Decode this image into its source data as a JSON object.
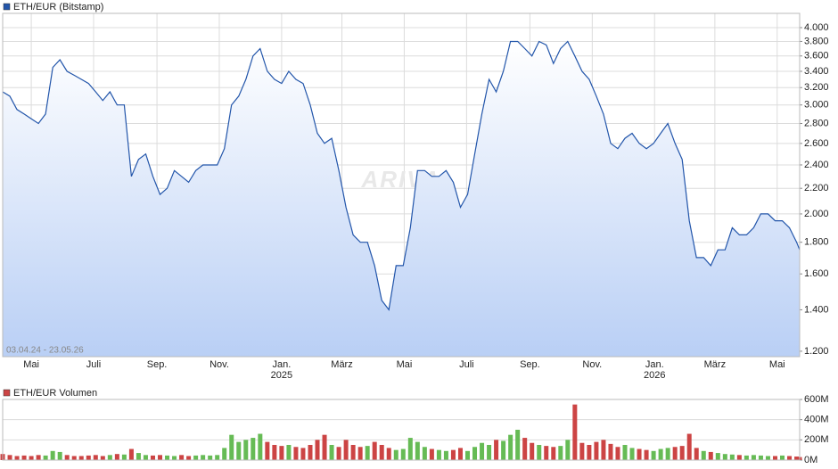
{
  "chart_data": [
    {
      "type": "line",
      "title": "ETH/EUR (Bitstamp)",
      "date_range": "03.04.24 - 23.05.26",
      "watermark": "ARIVA",
      "color": "#2255aa",
      "log_scale": true,
      "grid": true,
      "xlim": [
        "2024-04-03",
        "2026-05-23"
      ],
      "ylim": [
        1176,
        4218
      ],
      "yticks": [
        {
          "value": 1200,
          "label": "1.200"
        },
        {
          "value": 1400,
          "label": "1.400"
        },
        {
          "value": 1600,
          "label": "1.600"
        },
        {
          "value": 1800,
          "label": "1.800"
        },
        {
          "value": 2000,
          "label": "2.000"
        },
        {
          "value": 2200,
          "label": "2.200"
        },
        {
          "value": 2400,
          "label": "2.400"
        },
        {
          "value": 2600,
          "label": "2.600"
        },
        {
          "value": 2800,
          "label": "2.800"
        },
        {
          "value": 3000,
          "label": "3.000"
        },
        {
          "value": 3200,
          "label": "3.200"
        },
        {
          "value": 3400,
          "label": "3.400"
        },
        {
          "value": 3600,
          "label": "3.600"
        },
        {
          "value": 3800,
          "label": "3.800"
        },
        {
          "value": 4000,
          "label": "4.000"
        }
      ],
      "xticks": [
        {
          "value": "2024-05-01",
          "label": "Mai"
        },
        {
          "value": "2024-07-01",
          "label": "Juli"
        },
        {
          "value": "2024-09-01",
          "label": "Sep."
        },
        {
          "value": "2024-11-01",
          "label": "Nov."
        },
        {
          "value": "2025-01-01",
          "label": "Jan."
        },
        {
          "value": "2025-03-01",
          "label": "März"
        },
        {
          "value": "2025-05-01",
          "label": "Mai"
        },
        {
          "value": "2025-07-01",
          "label": "Juli"
        },
        {
          "value": "2025-09-01",
          "label": "Sep."
        },
        {
          "value": "2025-11-01",
          "label": "Nov."
        },
        {
          "value": "2026-01-01",
          "label": "Jan."
        },
        {
          "value": "2026-03-01",
          "label": "März"
        },
        {
          "value": "2026-05-01",
          "label": "Mai"
        }
      ],
      "year_labels": [
        {
          "value": "2025-01-01",
          "label": "2025"
        },
        {
          "value": "2026-01-01",
          "label": "2026"
        }
      ],
      "x": [
        "2024-04-03",
        "2024-04-10",
        "2024-04-17",
        "2024-04-24",
        "2024-05-01",
        "2024-05-08",
        "2024-05-15",
        "2024-05-22",
        "2024-05-29",
        "2024-06-05",
        "2024-06-12",
        "2024-06-19",
        "2024-06-26",
        "2024-07-03",
        "2024-07-10",
        "2024-07-17",
        "2024-07-24",
        "2024-07-31",
        "2024-08-07",
        "2024-08-14",
        "2024-08-21",
        "2024-08-28",
        "2024-09-04",
        "2024-09-11",
        "2024-09-18",
        "2024-09-25",
        "2024-10-02",
        "2024-10-09",
        "2024-10-16",
        "2024-10-23",
        "2024-10-30",
        "2024-11-06",
        "2024-11-13",
        "2024-11-20",
        "2024-11-27",
        "2024-12-04",
        "2024-12-11",
        "2024-12-18",
        "2024-12-25",
        "2025-01-01",
        "2025-01-08",
        "2025-01-15",
        "2025-01-22",
        "2025-01-29",
        "2025-02-05",
        "2025-02-12",
        "2025-02-19",
        "2025-02-26",
        "2025-03-05",
        "2025-03-12",
        "2025-03-19",
        "2025-03-26",
        "2025-04-02",
        "2025-04-09",
        "2025-04-16",
        "2025-04-23",
        "2025-04-30",
        "2025-05-07",
        "2025-05-14",
        "2025-05-21",
        "2025-05-28",
        "2025-06-04",
        "2025-06-11",
        "2025-06-18",
        "2025-06-25",
        "2025-07-02",
        "2025-07-09",
        "2025-07-16",
        "2025-07-23",
        "2025-07-30",
        "2025-08-06",
        "2025-08-13",
        "2025-08-20",
        "2025-08-27",
        "2025-09-03",
        "2025-09-10",
        "2025-09-17",
        "2025-09-24",
        "2025-10-01",
        "2025-10-08",
        "2025-10-15",
        "2025-10-22",
        "2025-10-29",
        "2025-11-05",
        "2025-11-12",
        "2025-11-19",
        "2025-11-26",
        "2025-12-03",
        "2025-12-10",
        "2025-12-17",
        "2025-12-24",
        "2025-12-31",
        "2026-01-07",
        "2026-01-14",
        "2026-01-21",
        "2026-01-28",
        "2026-02-04",
        "2026-02-11",
        "2026-02-18",
        "2026-02-25",
        "2026-03-04",
        "2026-03-11",
        "2026-03-18",
        "2026-03-25",
        "2026-04-01",
        "2026-04-08",
        "2026-04-15",
        "2026-04-22",
        "2026-04-29",
        "2026-05-06",
        "2026-05-13",
        "2026-05-20",
        "2026-05-23"
      ],
      "values": [
        3150,
        3100,
        2950,
        2900,
        2850,
        2800,
        2900,
        3450,
        3550,
        3400,
        3350,
        3300,
        3250,
        3150,
        3050,
        3150,
        3000,
        3000,
        2300,
        2450,
        2500,
        2300,
        2150,
        2200,
        2350,
        2300,
        2250,
        2350,
        2400,
        2400,
        2400,
        2550,
        3000,
        3100,
        3300,
        3600,
        3700,
        3400,
        3300,
        3250,
        3400,
        3300,
        3250,
        3000,
        2700,
        2600,
        2650,
        2350,
        2050,
        1850,
        1800,
        1800,
        1650,
        1450,
        1400,
        1650,
        1650,
        1900,
        2350,
        2350,
        2300,
        2300,
        2350,
        2250,
        2050,
        2150,
        2500,
        2900,
        3300,
        3150,
        3400,
        3800,
        3800,
        3700,
        3600,
        3800,
        3750,
        3500,
        3700,
        3800,
        3600,
        3400,
        3300,
        3100,
        2900,
        2600,
        2550,
        2650,
        2700,
        2600,
        2550,
        2600,
        2700,
        2800,
        2600,
        2450,
        1950,
        1700,
        1700,
        1650,
        1750,
        1750,
        1900,
        1850,
        1850,
        1900,
        2000,
        2000,
        1950,
        1950,
        1900,
        1800,
        1750
      ]
    },
    {
      "type": "bar",
      "title": "ETH/EUR Volumen",
      "color": "#cc4444",
      "up_color": "#66bb55",
      "down_color": "#cc4444",
      "grid": true,
      "xlim": [
        "2024-04-03",
        "2026-05-23"
      ],
      "ylim": [
        0,
        600000000
      ],
      "yticks": [
        {
          "value": 0,
          "label": "0M"
        },
        {
          "value": 200000000,
          "label": "200M"
        },
        {
          "value": 400000000,
          "label": "400M"
        },
        {
          "value": 600000000,
          "label": "600M"
        }
      ],
      "values": [
        60000000,
        50000000,
        40000000,
        45000000,
        40000000,
        50000000,
        45000000,
        90000000,
        80000000,
        50000000,
        40000000,
        40000000,
        45000000,
        50000000,
        40000000,
        50000000,
        60000000,
        55000000,
        110000000,
        70000000,
        50000000,
        45000000,
        50000000,
        45000000,
        40000000,
        50000000,
        40000000,
        45000000,
        50000000,
        45000000,
        50000000,
        120000000,
        250000000,
        180000000,
        200000000,
        220000000,
        260000000,
        180000000,
        150000000,
        140000000,
        150000000,
        130000000,
        120000000,
        150000000,
        200000000,
        250000000,
        150000000,
        130000000,
        200000000,
        150000000,
        130000000,
        140000000,
        180000000,
        150000000,
        120000000,
        100000000,
        110000000,
        220000000,
        180000000,
        130000000,
        110000000,
        100000000,
        90000000,
        100000000,
        120000000,
        90000000,
        130000000,
        170000000,
        150000000,
        200000000,
        190000000,
        250000000,
        300000000,
        220000000,
        170000000,
        150000000,
        140000000,
        130000000,
        140000000,
        200000000,
        550000000,
        170000000,
        150000000,
        180000000,
        200000000,
        160000000,
        130000000,
        150000000,
        120000000,
        110000000,
        100000000,
        90000000,
        110000000,
        120000000,
        130000000,
        140000000,
        260000000,
        120000000,
        90000000,
        80000000,
        70000000,
        60000000,
        55000000,
        50000000,
        45000000,
        50000000,
        45000000,
        40000000,
        40000000,
        45000000,
        40000000,
        35000000,
        30000000
      ]
    }
  ]
}
